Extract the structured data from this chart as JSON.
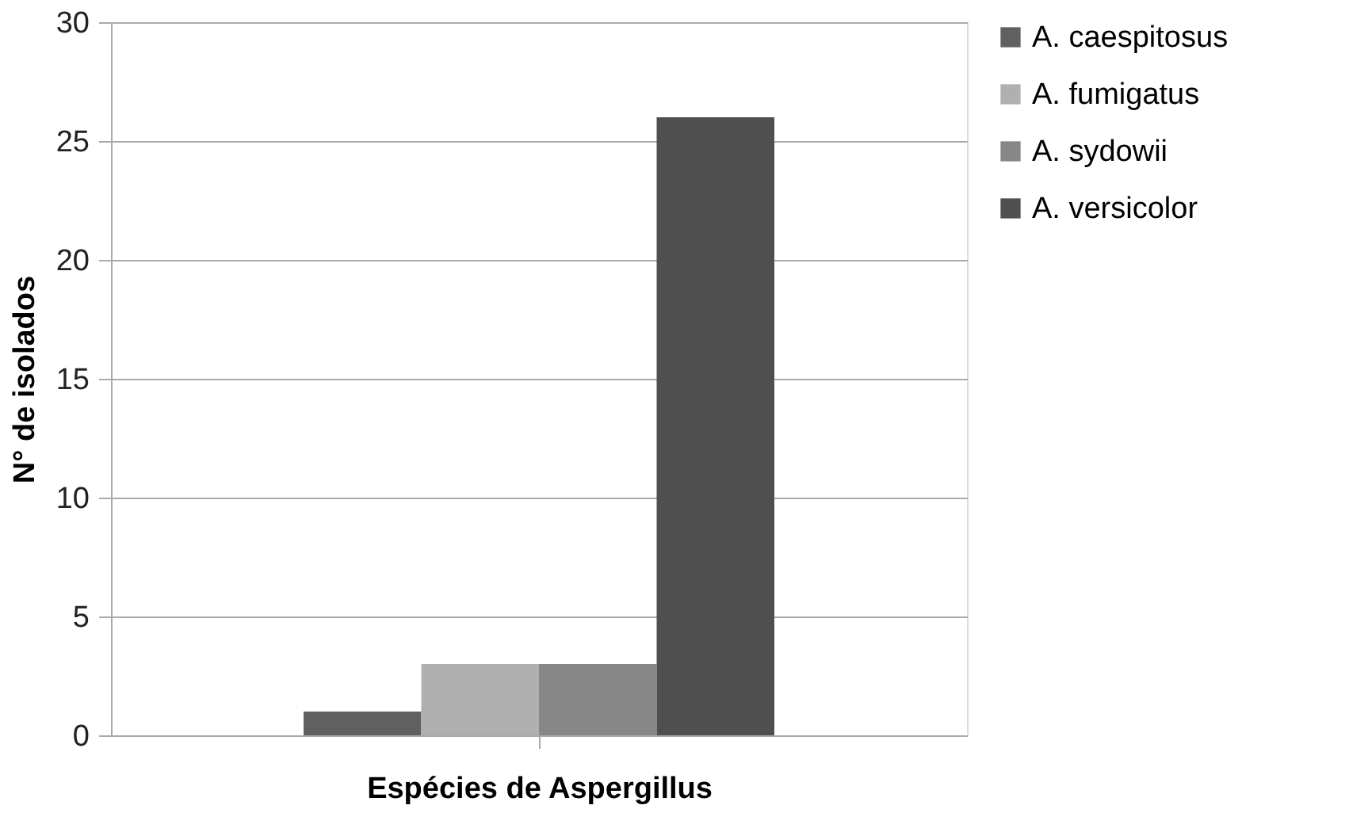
{
  "chart_data": {
    "type": "bar",
    "xlabel": "Espécies de Aspergillus",
    "ylabel": "N° de isolados",
    "categories": [
      null
    ],
    "series": [
      {
        "name": "A. caespitosus",
        "color": "#606060",
        "values": [
          1
        ]
      },
      {
        "name": "A. fumigatus",
        "color": "#b0b0b0",
        "values": [
          3
        ]
      },
      {
        "name": "A. sydowii",
        "color": "#878787",
        "values": [
          3
        ]
      },
      {
        "name": "A. versicolor",
        "color": "#4f4f4f",
        "values": [
          26
        ]
      }
    ],
    "ylim": [
      0,
      30
    ],
    "yticks": [
      0,
      5,
      10,
      15,
      20,
      25,
      30
    ],
    "grid": "y",
    "legend": "right"
  }
}
